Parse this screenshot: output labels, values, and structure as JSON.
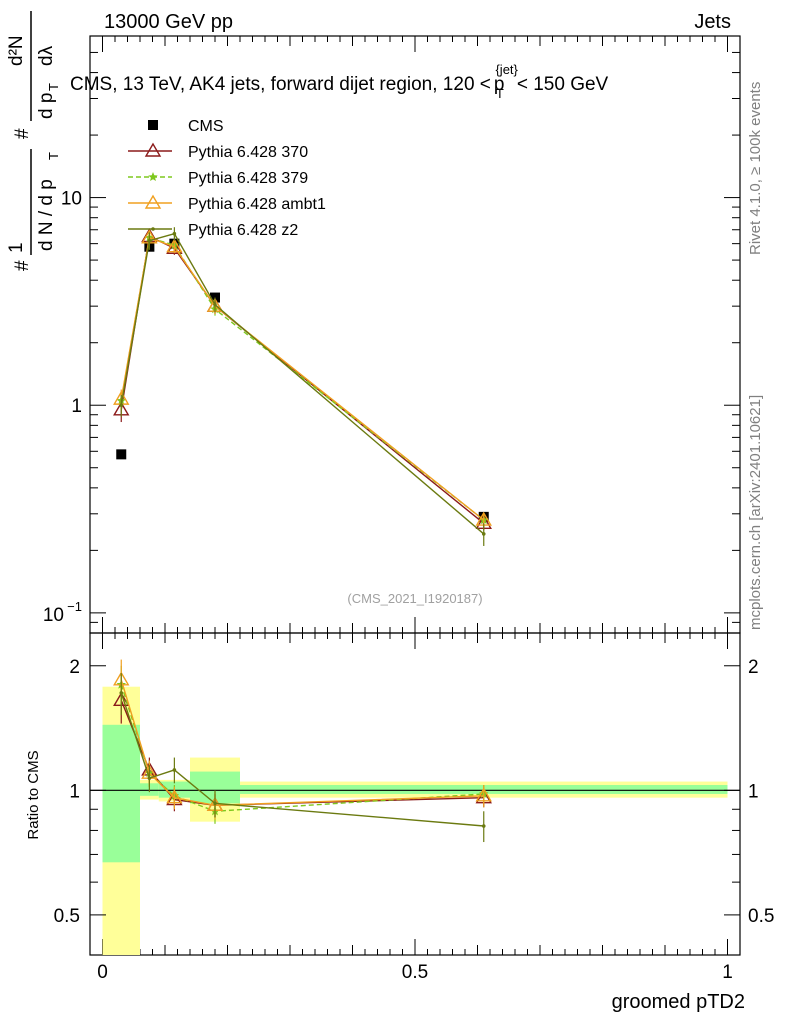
{
  "header": {
    "energy_label": "13000 GeV pp",
    "category_label": "Jets"
  },
  "side_labels": {
    "rivet": "Rivet 4.1.0, ≥ 100k events",
    "source": "mcplots.cern.ch [arXiv:2401.10621]"
  },
  "colors": {
    "cms": "#000000",
    "p370": "#8b1a1a",
    "p379": "#7ec81e",
    "ambt1": "#f0a020",
    "z2": "#6b7a10",
    "band_inner": "#99ff99",
    "band_outer": "#ffff99"
  },
  "chart_data": [
    {
      "type": "scatter",
      "panel": "main",
      "title": "CMS, 13 TeV, AK4 jets, forward dijet region, 120 < p_T^{jet} < 150 GeV",
      "title_parts": {
        "main": "CMS, 13 TeV, AK4 jets, forward dijet region, 120 <",
        "p": "p",
        "sup": "{jet}",
        "sub": "T",
        "tail": "< 150 GeV"
      },
      "ylabel_parts": {
        "hash": "#",
        "one": "1",
        "dN": "d N / d p",
        "T": "T",
        "hash2": "#",
        "d2N": "d²N",
        "dp": "d p",
        "T2": "T",
        "dl": "dλ"
      },
      "yscale": "log",
      "ylim": [
        0.08,
        60
      ],
      "xlim": [
        -0.02,
        1.02
      ],
      "ytick_labels": [
        "1",
        "10"
      ],
      "ytick_minor_label": {
        "base": "10",
        "exp": "−1"
      },
      "watermark": "(CMS_2021_I1920187)",
      "legend": [
        "CMS",
        "Pythia 6.428 370",
        "Pythia 6.428 379",
        "Pythia 6.428 ambt1",
        "Pythia 6.428 z2"
      ],
      "series": [
        {
          "name": "CMS",
          "style": "square",
          "x": [
            0.03,
            0.075,
            0.115,
            0.18,
            0.61
          ],
          "values": [
            0.58,
            5.8,
            6.0,
            3.3,
            0.29
          ]
        },
        {
          "name": "Pythia 6.428 370",
          "style": "triangle-open",
          "x": [
            0.03,
            0.075,
            0.115,
            0.18,
            0.61
          ],
          "values": [
            0.95,
            6.5,
            5.7,
            3.0,
            0.27
          ],
          "err": [
            0.12,
            0.5,
            0.4,
            0.25,
            0.02
          ]
        },
        {
          "name": "Pythia 6.428 379",
          "style": "star-dashed",
          "x": [
            0.03,
            0.075,
            0.115,
            0.18,
            0.61
          ],
          "values": [
            1.05,
            6.4,
            5.9,
            2.9,
            0.28
          ],
          "err": [
            0.1,
            0.5,
            0.4,
            0.2,
            0.02
          ]
        },
        {
          "name": "Pythia 6.428 ambt1",
          "style": "triangle-open",
          "x": [
            0.03,
            0.075,
            0.115,
            0.18,
            0.61
          ],
          "values": [
            1.07,
            6.4,
            5.8,
            3.0,
            0.28
          ],
          "err": [
            0.12,
            0.5,
            0.4,
            0.25,
            0.02
          ]
        },
        {
          "name": "Pythia 6.428 z2",
          "style": "dot",
          "x": [
            0.03,
            0.075,
            0.115,
            0.18,
            0.61
          ],
          "values": [
            1.0,
            6.2,
            6.7,
            3.05,
            0.24
          ],
          "err": [
            0.12,
            0.6,
            0.5,
            0.25,
            0.03
          ]
        }
      ]
    },
    {
      "type": "line",
      "panel": "ratio",
      "ylabel": "Ratio to CMS",
      "xlabel": "groomed pTD2",
      "yscale": "log",
      "ylim": [
        0.4,
        2.4
      ],
      "xlim": [
        -0.02,
        1.02
      ],
      "ytick_labels": [
        "0.5",
        "1",
        "2"
      ],
      "xtick_labels": [
        "0",
        "0.5",
        "1"
      ],
      "bins": [
        {
          "x_low": 0.0,
          "x_high": 0.06,
          "inner": [
            0.67,
            1.44
          ],
          "outer": [
            0.4,
            1.78
          ]
        },
        {
          "x_low": 0.06,
          "x_high": 0.09,
          "inner": [
            0.97,
            1.04
          ],
          "outer": [
            0.95,
            1.06
          ]
        },
        {
          "x_low": 0.09,
          "x_high": 0.14,
          "inner": [
            0.96,
            1.05
          ],
          "outer": [
            0.94,
            1.06
          ]
        },
        {
          "x_low": 0.14,
          "x_high": 0.22,
          "inner": [
            0.93,
            1.11
          ],
          "outer": [
            0.84,
            1.2
          ]
        },
        {
          "x_low": 0.22,
          "x_high": 1.0,
          "inner": [
            0.98,
            1.03
          ],
          "outer": [
            0.96,
            1.05
          ]
        }
      ],
      "series": [
        {
          "name": "Pythia 6.428 370",
          "x": [
            0.03,
            0.075,
            0.115,
            0.18,
            0.61
          ],
          "values": [
            1.65,
            1.12,
            0.95,
            0.92,
            0.96
          ],
          "err": [
            0.2,
            0.08,
            0.06,
            0.06,
            0.05
          ]
        },
        {
          "name": "Pythia 6.428 379",
          "x": [
            0.03,
            0.075,
            0.115,
            0.18,
            0.61
          ],
          "values": [
            1.8,
            1.1,
            0.97,
            0.89,
            0.98
          ],
          "err": [
            0.2,
            0.08,
            0.06,
            0.06,
            0.05
          ]
        },
        {
          "name": "Pythia 6.428 ambt1",
          "x": [
            0.03,
            0.075,
            0.115,
            0.18,
            0.61
          ],
          "values": [
            1.85,
            1.1,
            0.96,
            0.92,
            0.97
          ],
          "err": [
            0.22,
            0.08,
            0.06,
            0.07,
            0.06
          ]
        },
        {
          "name": "Pythia 6.428 z2",
          "x": [
            0.03,
            0.075,
            0.115,
            0.18,
            0.61
          ],
          "values": [
            1.72,
            1.07,
            1.12,
            0.93,
            0.82
          ],
          "err": [
            0.2,
            0.08,
            0.08,
            0.07,
            0.07
          ]
        }
      ]
    }
  ]
}
